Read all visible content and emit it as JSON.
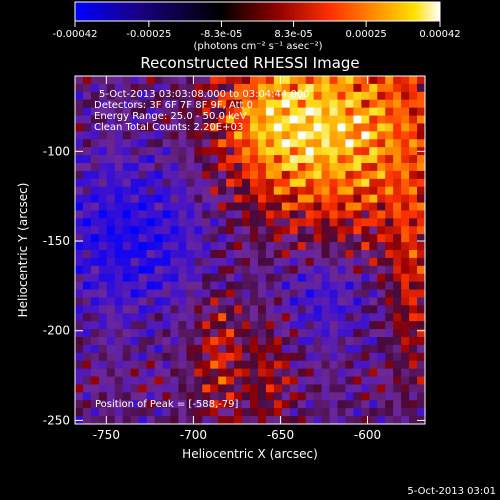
{
  "colorbar": {
    "tick_labels": [
      "-0.00042",
      "-0.00025",
      "-8.3e-05",
      "8.3e-05",
      "0.00025",
      "0.00042"
    ],
    "tick_values": [
      -0.00042,
      -0.00025,
      -8.3e-05,
      8.3e-05,
      0.00025,
      0.00042
    ],
    "range": [
      -0.00042,
      0.00042
    ],
    "units_label": "(photons cm⁻² s⁻¹ asec⁻²)",
    "colors": [
      "#0000ff",
      "#1a0080",
      "#000000",
      "#8b0000",
      "#ff3000",
      "#ff8c00",
      "#ffe000",
      "#ffffff"
    ]
  },
  "plot": {
    "title": "Reconstructed RHESSI Image",
    "xlabel": "Heliocentric X (arcsec)",
    "ylabel": "Heliocentric Y (arcsec)",
    "x_ticks": [
      "-750",
      "-700",
      "-650",
      "-600"
    ],
    "x_tick_values": [
      -750,
      -700,
      -650,
      -600
    ],
    "y_ticks": [
      "-100",
      "-150",
      "-200",
      "-250"
    ],
    "y_tick_values": [
      -100,
      -150,
      -200,
      -250
    ],
    "xlim": [
      -768,
      -567
    ],
    "ylim": [
      -252,
      -58
    ]
  },
  "annotations": {
    "time_range": "5-Oct-2013 03:03:08.000 to 03:04:44.000",
    "detectors": "Detectors: 3F 6F 7F 8F 9F, Att 0",
    "energy": "Energy Range: 25.0 - 50.0 keV",
    "clean": "Clean     Total Counts: 2.20E+03",
    "peak": "Position of Peak = [-588,-79]"
  },
  "footer": {
    "timestamp": "5-Oct-2013 03:01"
  }
}
